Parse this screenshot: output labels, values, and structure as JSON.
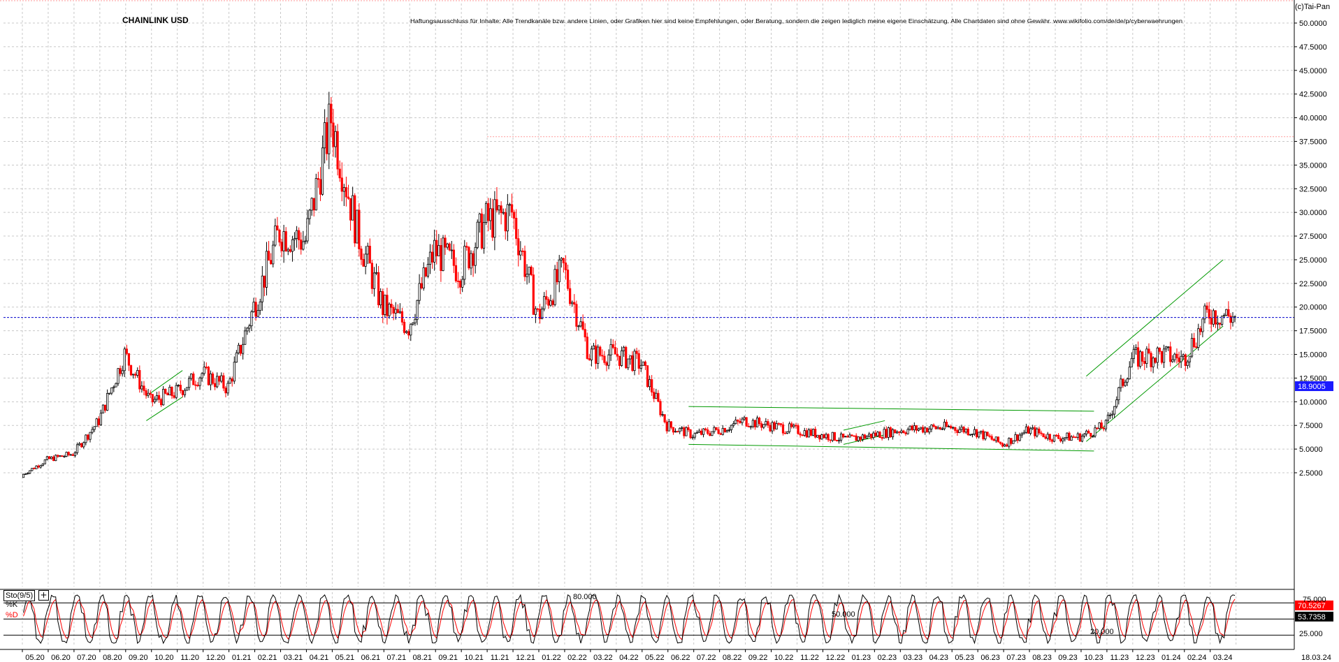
{
  "header": {
    "title": "CHAINLINK USD",
    "disclaimer": "Haftungsausschluss für Inhalte: Alle Trendkanäle bzw. andere Linien, oder Grafiken hier sind keine Empfehlungen, oder Beratung, sondern die zeigen lediglich meine eigene Einschätzung. Alle Chartdaten sind ohne Gewähr.  www.wikifolio.com/de/de/p/cyberwaehrungen",
    "copyright": "(c)Tai-Pan"
  },
  "indicator": {
    "button_label": "Sto(9/5)",
    "plus_label": "+",
    "k_label": "%K",
    "d_label": "%D",
    "level_80_label": "80.000",
    "level_50_label": "50.000",
    "level_20_label": "20.000",
    "k_value": "70.5267",
    "d_value": "53.7358",
    "axis_labels": [
      "75.000",
      "25.000"
    ]
  },
  "colors": {
    "bull_candle": "#000000",
    "bear_candle": "#ff0000",
    "trend_lines": "#009900",
    "current_price_line": "#0000cc",
    "resistance_line": "#ff9999",
    "grid": "#c8c8c8",
    "k_line": "#000000",
    "d_line": "#ff0000"
  },
  "chart_data": {
    "type": "candlestick",
    "title": "CHAINLINK USD",
    "y_axis_side": "right",
    "ylim": [
      1.5,
      52
    ],
    "y_ticks": [
      "2.5000",
      "5.0000",
      "7.5000",
      "10.0000",
      "12.5000",
      "15.0000",
      "17.5000",
      "20.0000",
      "22.5000",
      "25.0000",
      "27.5000",
      "30.0000",
      "32.5000",
      "35.0000",
      "37.5000",
      "40.0000",
      "42.5000",
      "45.0000",
      "47.5000",
      "50.0000"
    ],
    "x_tick_labels": [
      "05.20",
      "06.20",
      "07.20",
      "08.20",
      "09.20",
      "10.20",
      "11.20",
      "12.20",
      "01.21",
      "02.21",
      "03.21",
      "04.21",
      "05.21",
      "06.21",
      "07.21",
      "08.21",
      "09.21",
      "10.21",
      "11.21",
      "12.21",
      "01.22",
      "02.22",
      "03.22",
      "04.22",
      "05.22",
      "06.22",
      "07.22",
      "08.22",
      "09.22",
      "10.22",
      "11.22",
      "12.22",
      "01.23",
      "02.23",
      "03.23",
      "04.23",
      "05.23",
      "06.23",
      "07.23",
      "08.23",
      "09.23",
      "10.23",
      "11.23",
      "12.23",
      "01.24",
      "02.24",
      "03.24"
    ],
    "last_date_label": "18.03.24",
    "current_price": 18.9005,
    "current_price_label": "18.9005",
    "resistance_level": 38.0,
    "grid": true,
    "series": [
      {
        "name": "CHAINLINK USD",
        "close_by_month": [
          {
            "month": "05.20",
            "close": 3.9
          },
          {
            "month": "06.20",
            "close": 4.5
          },
          {
            "month": "07.20",
            "close": 8.0
          },
          {
            "month": "08.20",
            "close": 15.0
          },
          {
            "month": "09.20",
            "close": 10.0
          },
          {
            "month": "10.20",
            "close": 11.0
          },
          {
            "month": "11.20",
            "close": 13.0
          },
          {
            "month": "12.20",
            "close": 11.5
          },
          {
            "month": "01.21",
            "close": 20.0
          },
          {
            "month": "02.21",
            "close": 28.0
          },
          {
            "month": "03.21",
            "close": 27.0
          },
          {
            "month": "04.21",
            "close": 40.0
          },
          {
            "month": "05.21",
            "close": 28.0
          },
          {
            "month": "06.21",
            "close": 20.0
          },
          {
            "month": "07.21",
            "close": 18.0
          },
          {
            "month": "08.21",
            "close": 26.0
          },
          {
            "month": "09.21",
            "close": 24.0
          },
          {
            "month": "10.21",
            "close": 29.0
          },
          {
            "month": "11.21",
            "close": 30.0
          },
          {
            "month": "12.21",
            "close": 19.0
          },
          {
            "month": "01.22",
            "close": 24.0
          },
          {
            "month": "02.22",
            "close": 15.0
          },
          {
            "month": "03.22",
            "close": 15.0
          },
          {
            "month": "04.22",
            "close": 14.0
          },
          {
            "month": "05.22",
            "close": 7.5
          },
          {
            "month": "06.22",
            "close": 6.5
          },
          {
            "month": "07.22",
            "close": 7.0
          },
          {
            "month": "08.22",
            "close": 8.0
          },
          {
            "month": "09.22",
            "close": 7.5
          },
          {
            "month": "10.22",
            "close": 7.0
          },
          {
            "month": "11.22",
            "close": 6.5
          },
          {
            "month": "12.22",
            "close": 6.0
          },
          {
            "month": "01.23",
            "close": 6.5
          },
          {
            "month": "02.23",
            "close": 7.0
          },
          {
            "month": "03.23",
            "close": 7.2
          },
          {
            "month": "04.23",
            "close": 7.3
          },
          {
            "month": "05.23",
            "close": 6.8
          },
          {
            "month": "06.23",
            "close": 5.5
          },
          {
            "month": "07.23",
            "close": 7.0
          },
          {
            "month": "08.23",
            "close": 6.2
          },
          {
            "month": "09.23",
            "close": 6.3
          },
          {
            "month": "10.23",
            "close": 7.5
          },
          {
            "month": "11.23",
            "close": 14.5
          },
          {
            "month": "12.23",
            "close": 15.0
          },
          {
            "month": "01.24",
            "close": 14.5
          },
          {
            "month": "02.24",
            "close": 19.5
          },
          {
            "month": "03.24",
            "close": 18.9
          }
        ]
      }
    ],
    "stochastic": {
      "name": "Sto(9/5)",
      "ylim": [
        0,
        100
      ],
      "levels": [
        80,
        50,
        20
      ],
      "k_last": 70.5267,
      "d_last": 53.7358
    }
  }
}
